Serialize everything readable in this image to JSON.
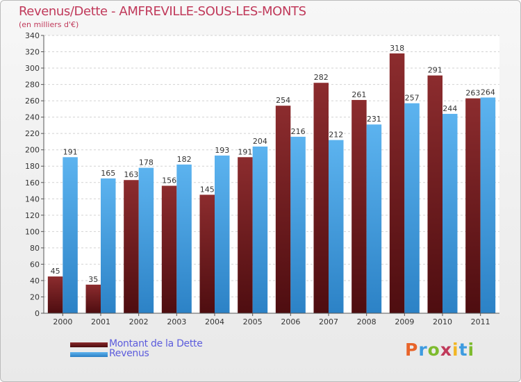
{
  "chart_data": {
    "type": "bar",
    "title": "Revenus/Dette - AMFREVILLE-SOUS-LES-MONTS",
    "subtitle": "(en milliers d'€)",
    "categories": [
      "2000",
      "2001",
      "2002",
      "2003",
      "2004",
      "2005",
      "2006",
      "2007",
      "2008",
      "2009",
      "2010",
      "2011"
    ],
    "series": [
      {
        "name": "Montant de la Dette",
        "color": "#7a1e22",
        "values": [
          45,
          35,
          163,
          156,
          145,
          191,
          254,
          282,
          261,
          318,
          291,
          263
        ]
      },
      {
        "name": "Revenus",
        "color": "#3d9be0",
        "values": [
          191,
          165,
          178,
          182,
          193,
          204,
          216,
          212,
          231,
          257,
          244,
          264
        ]
      }
    ],
    "ylim": [
      0,
      340
    ],
    "ytick_step": 20,
    "grid": true,
    "legend_position": "bottom-left"
  },
  "branding": {
    "logo_text": "Proxiti",
    "logo_colors": [
      "#e8642a",
      "#3d9be0",
      "#7dbb2e",
      "#c0395a",
      "#f2b624",
      "#3d9be0",
      "#7dbb2e"
    ]
  }
}
